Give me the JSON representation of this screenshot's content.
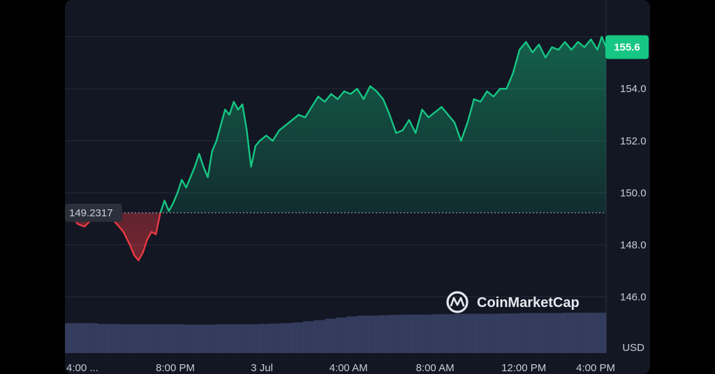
{
  "chart_data": {
    "type": "area",
    "x_ticks": [
      "4:00 ...",
      "8:00 PM",
      "3 Jul",
      "4:00 AM",
      "8:00 AM",
      "12:00 PM",
      "4:00 PM"
    ],
    "y_ticks": [
      "146.0",
      "148.0",
      "150.0",
      "152.0",
      "154.0"
    ],
    "unit": "USD",
    "ylim": [
      144.0,
      156.5
    ],
    "xlim": [
      0,
      25
    ],
    "baseline": {
      "value": 149.2317,
      "label": "149.2317"
    },
    "last_price": {
      "value": 155.6,
      "label": "155.6"
    },
    "grid": true,
    "colors": {
      "up": "#16c784",
      "down": "#ea3943",
      "up_label_bg": "#16c784",
      "volume": "#3a4366"
    },
    "series": [
      {
        "x": [
          0,
          0.3,
          0.6,
          0.9,
          1.2,
          1.5,
          1.8,
          2.1,
          2.4,
          2.7,
          3.0,
          3.2,
          3.4,
          3.6,
          3.8,
          4.0,
          4.2,
          4.4,
          4.6,
          4.8,
          5.0,
          5.2,
          5.4,
          5.6,
          5.8,
          6.0,
          6.2,
          6.4,
          6.6,
          6.8,
          7.0,
          7.2,
          7.4,
          7.6,
          7.8,
          8.0,
          8.2,
          8.4,
          8.6,
          8.8,
          9.0,
          9.3,
          9.6,
          9.9,
          10.2,
          10.5,
          10.8,
          11.1,
          11.4,
          11.7,
          12.0,
          12.3,
          12.6,
          12.9,
          13.2,
          13.5,
          13.8,
          14.1,
          14.4,
          14.7,
          15.0,
          15.3,
          15.6,
          15.9,
          16.2,
          16.5,
          16.8,
          17.1,
          17.4,
          17.7,
          18.0,
          18.3,
          18.6,
          18.9,
          19.2,
          19.5,
          19.8,
          20.1,
          20.4,
          20.7,
          21.0,
          21.3,
          21.6,
          21.9,
          22.2,
          22.5,
          22.8,
          23.1,
          23.4,
          23.7,
          24.0,
          24.3,
          24.6,
          24.8,
          25.0
        ],
        "y": [
          149.3,
          149.1,
          148.8,
          148.7,
          148.95,
          149.1,
          149.2,
          149.05,
          148.8,
          148.5,
          148.0,
          147.6,
          147.4,
          147.7,
          148.2,
          148.5,
          148.4,
          149.2,
          149.7,
          149.3,
          149.6,
          150.0,
          150.5,
          150.2,
          150.6,
          151.0,
          151.5,
          151.0,
          150.6,
          151.6,
          152.0,
          152.6,
          153.2,
          153.0,
          153.5,
          153.2,
          153.4,
          152.4,
          151.0,
          151.8,
          152.0,
          152.2,
          152.0,
          152.4,
          152.6,
          152.8,
          153.0,
          152.9,
          153.3,
          153.7,
          153.5,
          153.8,
          153.6,
          153.9,
          153.8,
          154.0,
          153.6,
          154.1,
          153.9,
          153.6,
          153.0,
          152.3,
          152.4,
          152.8,
          152.3,
          153.2,
          152.9,
          153.1,
          153.3,
          153.0,
          152.7,
          152.0,
          152.7,
          153.6,
          153.5,
          153.9,
          153.7,
          154.0,
          154.0,
          154.6,
          155.5,
          155.8,
          155.4,
          155.7,
          155.2,
          155.6,
          155.5,
          155.8,
          155.5,
          155.8,
          155.6,
          155.9,
          155.5,
          156.0,
          155.6
        ]
      }
    ],
    "volume": [
      0.08,
      0.08,
      0.08,
      0.078,
      0.078,
      0.077,
      0.077,
      0.077,
      0.077,
      0.077,
      0.077,
      0.076,
      0.076,
      0.076,
      0.077,
      0.077,
      0.077,
      0.077,
      0.078,
      0.079,
      0.08,
      0.082,
      0.085,
      0.088,
      0.092,
      0.095,
      0.098,
      0.1,
      0.1,
      0.101,
      0.102,
      0.103,
      0.103,
      0.103,
      0.104,
      0.104,
      0.105,
      0.105,
      0.105,
      0.105,
      0.106,
      0.106,
      0.107,
      0.107,
      0.107,
      0.107,
      0.108,
      0.108,
      0.108,
      0.108
    ]
  },
  "watermark": {
    "text": "CoinMarketCap",
    "icon": "coinmarketcap-logo"
  }
}
